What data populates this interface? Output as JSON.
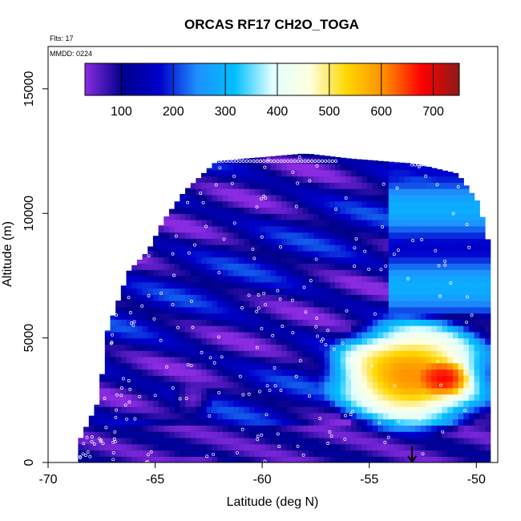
{
  "chart_data": {
    "type": "heatmap",
    "title": "ORCAS RF17 CH2O_TOGA",
    "annotations": {
      "flights": "Flts: 17",
      "date": "MMDD: 0224"
    },
    "xlabel": "Latitude (deg N)",
    "ylabel": "Altitude (m)",
    "xlim": [
      -70,
      -49
    ],
    "ylim": [
      0,
      16700
    ],
    "x_ticks": [
      -70,
      -65,
      -60,
      -55,
      -50
    ],
    "y_ticks": [
      0,
      5000,
      10000,
      15000
    ],
    "colorbar": {
      "range": [
        30,
        750
      ],
      "ticks": [
        100,
        200,
        300,
        400,
        500,
        600,
        700
      ],
      "colors": [
        "#8a2be2",
        "#00008b",
        "#0000cd",
        "#1e90ff",
        "#00bfff",
        "#e0ffff",
        "#ffffe0",
        "#ffd700",
        "#ff8c00",
        "#ff0000",
        "#8b1a1a"
      ]
    },
    "grid": false,
    "data_coverage": {
      "top_altitude_by_latitude": [
        [
          -68.6,
          0
        ],
        [
          -68.4,
          900
        ],
        [
          -67.5,
          2500
        ],
        [
          -67.1,
          5300
        ],
        [
          -66.1,
          7700
        ],
        [
          -65.2,
          8500
        ],
        [
          -64.5,
          9700
        ],
        [
          -63.5,
          10900
        ],
        [
          -62.0,
          12100
        ],
        [
          -58.0,
          12400
        ],
        [
          -56.0,
          12200
        ],
        [
          -53.0,
          12000
        ],
        [
          -51.0,
          11600
        ],
        [
          -50.0,
          10400
        ],
        [
          -49.5,
          8600
        ],
        [
          -49.5,
          0
        ]
      ]
    },
    "concentration_features": [
      {
        "latitude": [
          -56.5,
          -49.5
        ],
        "altitude": [
          1500,
          5500
        ],
        "value_ppt": [
          500,
          700
        ]
      },
      {
        "latitude": [
          -52.5,
          -50.5
        ],
        "altitude": [
          2800,
          4000
        ],
        "value_ppt": [
          650,
          700
        ]
      },
      {
        "latitude": [
          -64.0,
          -62.5
        ],
        "altitude": [
          2000,
          3200
        ],
        "value_ppt": [
          30,
          60
        ]
      },
      {
        "latitude": [
          -64.0,
          -62.0
        ],
        "altitude": [
          0,
          300
        ],
        "value_ppt": [
          30,
          60
        ]
      }
    ],
    "flight_marker": {
      "latitude": -53.0,
      "symbol": "arrow-down"
    }
  }
}
